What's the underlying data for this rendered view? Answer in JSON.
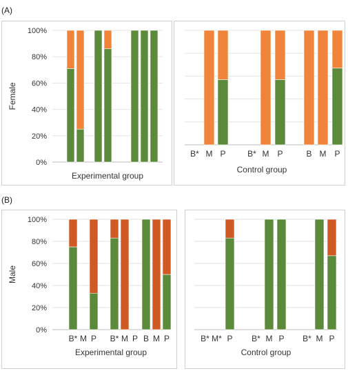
{
  "sections": [
    {
      "label": "(A)"
    },
    {
      "label": "(B)"
    }
  ],
  "colors": {
    "green": "#5a8a3a",
    "orange_A": "#f0843a",
    "orange_B": "#cf5a24",
    "grid": "#e2e2e2",
    "frame": "#cfcfcf"
  },
  "chart_data": [
    {
      "type": "bar",
      "stacked": true,
      "section": "A",
      "xlabel": "Experimental group",
      "ylabel": "Female",
      "yticks": [
        "0%",
        "20%",
        "40%",
        "60%",
        "80%",
        "100%"
      ],
      "ylim": [
        0,
        100
      ],
      "show_y_ticks": true,
      "categories": [
        "",
        "",
        "",
        "",
        "",
        "",
        "",
        ""
      ],
      "series": [
        {
          "color_key": "green",
          "values": [
            71,
            25,
            100,
            86,
            null,
            100,
            100,
            100
          ]
        },
        {
          "color_key": "orange_A",
          "values": [
            29,
            75,
            0,
            14,
            null,
            0,
            0,
            0
          ]
        }
      ]
    },
    {
      "type": "bar",
      "stacked": true,
      "section": "A",
      "xlabel": "Control group",
      "ylabel": "",
      "ylim": [
        0,
        100
      ],
      "show_y_ticks": false,
      "categories": [
        "B*",
        "M",
        "P",
        "B*",
        "M",
        "P",
        "B",
        "M",
        "P"
      ],
      "series": [
        {
          "color_key": "green",
          "values": [
            0,
            0,
            57,
            0,
            0,
            57,
            0,
            0,
            67
          ]
        },
        {
          "color_key": "orange_A",
          "values": [
            0,
            100,
            43,
            0,
            100,
            43,
            100,
            100,
            33
          ]
        }
      ]
    },
    {
      "type": "bar",
      "stacked": true,
      "section": "B",
      "xlabel": "Experimental group",
      "ylabel": "Male",
      "yticks": [
        "0%",
        "20%",
        "40%",
        "60%",
        "80%",
        "100%"
      ],
      "ylim": [
        0,
        100
      ],
      "show_y_ticks": true,
      "categories": [
        "B*",
        "M",
        "P",
        "B*",
        "M",
        "P",
        "B",
        "M",
        "P"
      ],
      "series": [
        {
          "color_key": "green",
          "values": [
            75,
            0,
            33,
            83,
            0,
            0,
            100,
            0,
            50
          ]
        },
        {
          "color_key": "orange_B",
          "values": [
            25,
            0,
            67,
            17,
            100,
            0,
            0,
            100,
            50
          ]
        }
      ]
    },
    {
      "type": "bar",
      "stacked": true,
      "section": "B",
      "xlabel": "Control group",
      "ylabel": "",
      "ylim": [
        0,
        100
      ],
      "show_y_ticks": false,
      "categories": [
        "B*",
        "M*",
        "P",
        "B*",
        "M",
        "P",
        "B*",
        "M",
        "P"
      ],
      "series": [
        {
          "color_key": "green",
          "values": [
            0,
            0,
            83,
            0,
            100,
            100,
            0,
            100,
            67
          ]
        },
        {
          "color_key": "orange_B",
          "values": [
            0,
            0,
            17,
            0,
            0,
            0,
            0,
            0,
            33
          ]
        }
      ]
    }
  ]
}
